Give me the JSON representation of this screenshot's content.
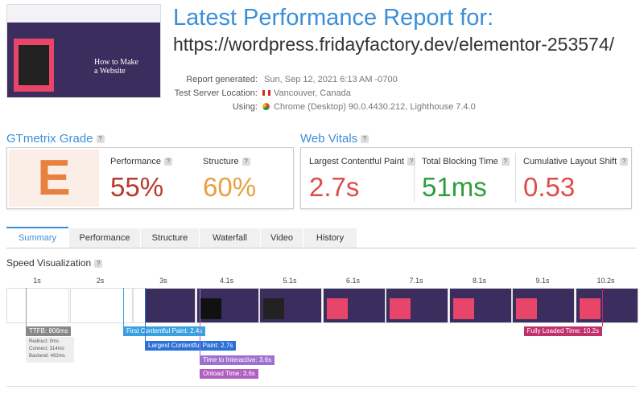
{
  "header": {
    "title": "Latest Performance Report for:",
    "url": "https://wordpress.fridayfactory.dev/elementor-253574/",
    "details": [
      {
        "label": "Report generated:",
        "value": "Sun, Sep 12, 2021 6:13 AM -0700"
      },
      {
        "label": "Test Server Location:",
        "value": "Vancouver, Canada"
      },
      {
        "label": "Using:",
        "value": "Chrome (Desktop) 90.0.4430.212, Lighthouse 7.4.0"
      }
    ]
  },
  "thumbnail": {
    "heading": "How to Make a Website"
  },
  "help": "?",
  "grade": {
    "title": "GTmetrix Grade",
    "letter": "E",
    "metrics": [
      {
        "label": "Performance",
        "value": "55%"
      },
      {
        "label": "Structure",
        "value": "60%"
      }
    ]
  },
  "web_vitals": {
    "title": "Web Vitals",
    "metrics": [
      {
        "label": "Largest Contentful Paint",
        "value": "2.7s"
      },
      {
        "label": "Total Blocking Time",
        "value": "51ms"
      },
      {
        "label": "Cumulative Layout Shift",
        "value": "0.53"
      }
    ]
  },
  "tabs": [
    "Summary",
    "Performance",
    "Structure",
    "Waterfall",
    "Video",
    "History"
  ],
  "speed_visualization": {
    "title": "Speed Visualization",
    "times": [
      "1s",
      "2s",
      "3s",
      "4.1s",
      "5.1s",
      "6.1s",
      "7.1s",
      "8.1s",
      "9.1s",
      "10.2s"
    ],
    "markers": [
      "TTFB: 806ms",
      "First Contentful Paint: 2.4s",
      "Largest Contentful Paint: 2.7s",
      "Time to Interactive: 3.6s",
      "Onload Time: 3.6s",
      "Fully Loaded Time: 10.2s"
    ],
    "ttfb_details": [
      "Redirect: 0ms",
      "Connect: 314ms",
      "Backend: 492ms"
    ]
  }
}
